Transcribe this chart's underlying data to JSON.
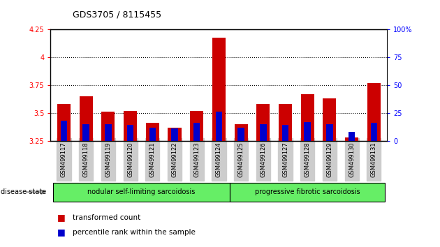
{
  "title": "GDS3705 / 8115455",
  "samples": [
    "GSM499117",
    "GSM499118",
    "GSM499119",
    "GSM499120",
    "GSM499121",
    "GSM499122",
    "GSM499123",
    "GSM499124",
    "GSM499125",
    "GSM499126",
    "GSM499127",
    "GSM499128",
    "GSM499129",
    "GSM499130",
    "GSM499131"
  ],
  "red_values": [
    3.58,
    3.65,
    3.51,
    3.52,
    3.41,
    3.37,
    3.52,
    4.18,
    3.4,
    3.58,
    3.58,
    3.67,
    3.63,
    3.28,
    3.77
  ],
  "blue_percentiles": [
    18,
    15,
    15,
    14,
    12,
    11,
    16,
    26,
    12,
    15,
    14,
    17,
    15,
    8,
    16
  ],
  "ylim_left": [
    3.25,
    4.25
  ],
  "ylim_right": [
    0,
    100
  ],
  "yticks_left": [
    3.25,
    3.5,
    3.75,
    4.0,
    4.25
  ],
  "yticks_right": [
    0,
    25,
    50,
    75,
    100
  ],
  "ytick_labels_left": [
    "3.25",
    "3.5",
    "3.75",
    "4",
    "4.25"
  ],
  "ytick_labels_right": [
    "0",
    "25",
    "50",
    "75",
    "100%"
  ],
  "bar_color_red": "#cc0000",
  "bar_color_blue": "#0000cc",
  "base_value": 3.25,
  "group1_label": "nodular self-limiting sarcoidosis",
  "group2_label": "progressive fibrotic sarcoidosis",
  "group1_count": 8,
  "group2_count": 7,
  "disease_state_label": "disease state",
  "legend1": "transformed count",
  "legend2": "percentile rank within the sample",
  "group_bg_color": "#66ee66",
  "tick_bg_color": "#cccccc",
  "dotted_lines": [
    3.5,
    3.75,
    4.0
  ],
  "bar_width": 0.6,
  "blue_bar_width": 0.3
}
